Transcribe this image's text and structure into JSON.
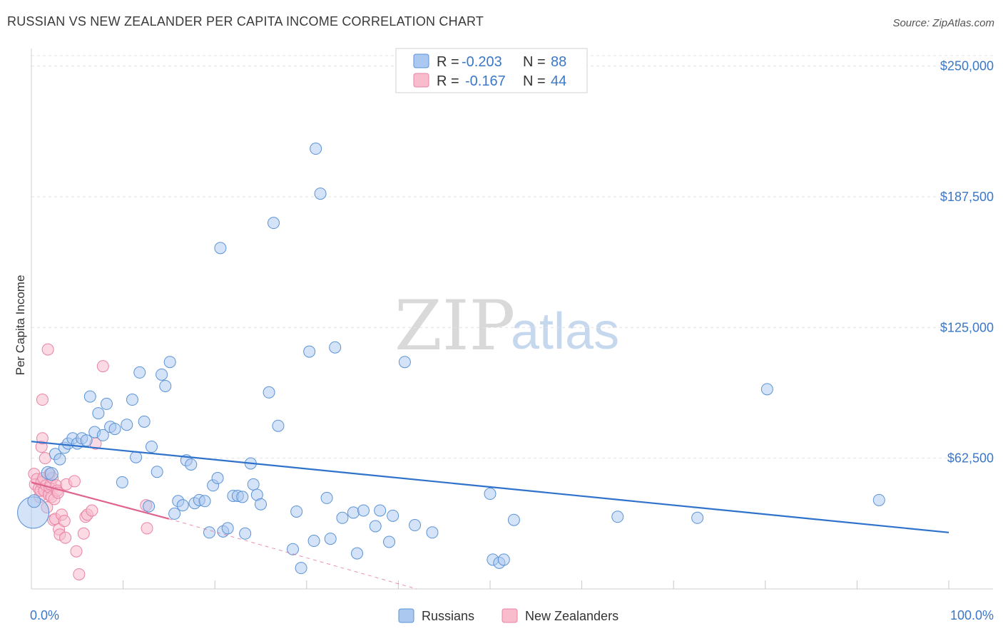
{
  "header": {
    "title": "RUSSIAN VS NEW ZEALANDER PER CAPITA INCOME CORRELATION CHART",
    "source": "Source: ZipAtlas.com"
  },
  "legend": {
    "r_label": "R =",
    "n_label": "N =",
    "series": [
      {
        "r": "-0.203",
        "n": "88"
      },
      {
        "r": "-0.167",
        "n": "44"
      }
    ]
  },
  "watermark": {
    "zip": "ZIP",
    "atlas": "atlas"
  },
  "colors": {
    "russians_fill": "#aac8f0",
    "russians_stroke": "#5b93d6",
    "russians_line": "#2f72cc",
    "nz_fill": "#f8bccd",
    "nz_stroke": "#e983a4",
    "nz_line": "#e0628f",
    "tick_text": "#3b78c7"
  },
  "chart_data": {
    "type": "scatter",
    "title": "RUSSIAN VS NEW ZEALANDER PER CAPITA INCOME CORRELATION CHART",
    "xlabel": "",
    "ylabel": "Per Capita Income",
    "xlim": [
      0,
      100
    ],
    "ylim": [
      0,
      255000
    ],
    "x_tick_labels": [
      "0.0%",
      "100.0%"
    ],
    "y_ticks": [
      62500,
      125000,
      187500,
      250000
    ],
    "y_tick_labels": [
      "$62,500",
      "$125,000",
      "$187,500",
      "$250,000"
    ],
    "grid": true,
    "legend_position": "bottom-center",
    "series": [
      {
        "name": "Russians",
        "r": -0.203,
        "n": 88,
        "trend": {
          "x": [
            0,
            100
          ],
          "y": [
            70500,
            27000
          ]
        },
        "points": [
          [
            0.2,
            36500,
            22
          ],
          [
            0.3,
            42000,
            9
          ],
          [
            1.8,
            55500,
            9
          ],
          [
            2.2,
            55000,
            9
          ],
          [
            2.6,
            64500,
            8
          ],
          [
            3.1,
            62000,
            8
          ],
          [
            3.6,
            67500,
            8
          ],
          [
            4.0,
            69500,
            8
          ],
          [
            4.5,
            72000,
            8
          ],
          [
            5.0,
            69500,
            8
          ],
          [
            5.5,
            72000,
            8
          ],
          [
            6.0,
            71000,
            8
          ],
          [
            6.4,
            92000,
            8
          ],
          [
            6.9,
            75000,
            8
          ],
          [
            7.3,
            84000,
            8
          ],
          [
            7.8,
            73500,
            8
          ],
          [
            8.2,
            88500,
            8
          ],
          [
            8.6,
            77500,
            8
          ],
          [
            9.1,
            76500,
            8
          ],
          [
            9.9,
            51000,
            8
          ],
          [
            10.4,
            78500,
            8
          ],
          [
            11.0,
            90500,
            8
          ],
          [
            11.4,
            63000,
            8
          ],
          [
            11.8,
            103500,
            8
          ],
          [
            12.3,
            80000,
            8
          ],
          [
            12.8,
            39500,
            8
          ],
          [
            13.1,
            68000,
            8
          ],
          [
            13.7,
            56000,
            8
          ],
          [
            14.2,
            102500,
            8
          ],
          [
            14.6,
            97000,
            8
          ],
          [
            15.1,
            108500,
            8
          ],
          [
            15.6,
            36000,
            8
          ],
          [
            16.0,
            42000,
            8
          ],
          [
            16.5,
            40000,
            8
          ],
          [
            16.9,
            61500,
            8
          ],
          [
            17.4,
            59500,
            8
          ],
          [
            17.8,
            41000,
            8
          ],
          [
            18.3,
            42500,
            8
          ],
          [
            18.9,
            42000,
            8
          ],
          [
            19.4,
            27000,
            8
          ],
          [
            19.8,
            49500,
            8
          ],
          [
            20.3,
            53000,
            8
          ],
          [
            20.6,
            163000,
            8
          ],
          [
            20.9,
            27500,
            8
          ],
          [
            21.4,
            29000,
            8
          ],
          [
            22.0,
            44500,
            8
          ],
          [
            22.5,
            44500,
            8
          ],
          [
            23.0,
            44000,
            8
          ],
          [
            23.3,
            26500,
            8
          ],
          [
            23.9,
            60000,
            8
          ],
          [
            24.2,
            50000,
            8
          ],
          [
            24.6,
            45000,
            8
          ],
          [
            25.0,
            40500,
            8
          ],
          [
            25.9,
            94000,
            8
          ],
          [
            26.4,
            175000,
            8
          ],
          [
            26.9,
            78000,
            8
          ],
          [
            28.5,
            19000,
            8
          ],
          [
            28.9,
            37000,
            8
          ],
          [
            29.4,
            10000,
            8
          ],
          [
            30.3,
            113500,
            8
          ],
          [
            30.8,
            23000,
            8
          ],
          [
            31.0,
            210500,
            8
          ],
          [
            31.5,
            189000,
            8
          ],
          [
            32.2,
            43500,
            8
          ],
          [
            32.6,
            24000,
            8
          ],
          [
            33.1,
            115500,
            8
          ],
          [
            33.9,
            34000,
            8
          ],
          [
            35.1,
            36500,
            8
          ],
          [
            35.5,
            17000,
            8
          ],
          [
            36.2,
            37500,
            8
          ],
          [
            37.5,
            30000,
            8
          ],
          [
            38.0,
            37500,
            8
          ],
          [
            39.0,
            22500,
            8
          ],
          [
            39.4,
            35000,
            8
          ],
          [
            40.7,
            108500,
            8
          ],
          [
            41.8,
            30500,
            8
          ],
          [
            43.7,
            27000,
            8
          ],
          [
            50.0,
            45500,
            8
          ],
          [
            50.3,
            14000,
            8
          ],
          [
            51.0,
            12500,
            8
          ],
          [
            51.5,
            14000,
            8
          ],
          [
            52.6,
            33000,
            8
          ],
          [
            63.9,
            34500,
            8
          ],
          [
            72.6,
            34000,
            8
          ],
          [
            80.2,
            95500,
            8
          ],
          [
            92.4,
            42500,
            8
          ]
        ]
      },
      {
        "name": "New Zealanders",
        "r": -0.167,
        "n": 44,
        "trend": {
          "x": [
            0,
            15
          ],
          "y": [
            51000,
            33500
          ]
        },
        "trend_dashed": {
          "x": [
            15,
            42
          ],
          "y": [
            33500,
            0
          ]
        },
        "points": [
          [
            0.3,
            55000,
            8
          ],
          [
            0.4,
            50000,
            8
          ],
          [
            0.6,
            52500,
            8
          ],
          [
            0.8,
            48000,
            8
          ],
          [
            0.9,
            44000,
            8
          ],
          [
            1.0,
            47000,
            8
          ],
          [
            1.1,
            68000,
            8
          ],
          [
            1.1,
            51000,
            8
          ],
          [
            1.2,
            90500,
            8
          ],
          [
            1.2,
            72000,
            8
          ],
          [
            1.3,
            53000,
            8
          ],
          [
            1.4,
            47000,
            8
          ],
          [
            1.5,
            62500,
            8
          ],
          [
            1.6,
            49500,
            8
          ],
          [
            1.7,
            39000,
            8
          ],
          [
            1.8,
            114500,
            8
          ],
          [
            1.9,
            45000,
            8
          ],
          [
            2.0,
            48500,
            8
          ],
          [
            2.0,
            55000,
            8
          ],
          [
            2.1,
            50000,
            8
          ],
          [
            2.2,
            44000,
            8
          ],
          [
            2.3,
            53000,
            8
          ],
          [
            2.4,
            33000,
            8
          ],
          [
            2.5,
            43000,
            8
          ],
          [
            2.6,
            33500,
            8
          ],
          [
            2.7,
            49500,
            8
          ],
          [
            2.8,
            47000,
            8
          ],
          [
            2.9,
            46000,
            8
          ],
          [
            3.0,
            28500,
            8
          ],
          [
            3.1,
            26000,
            8
          ],
          [
            3.3,
            35500,
            8
          ],
          [
            3.6,
            32500,
            8
          ],
          [
            3.7,
            24500,
            8
          ],
          [
            3.8,
            50000,
            8
          ],
          [
            4.7,
            51500,
            8
          ],
          [
            4.9,
            18000,
            8
          ],
          [
            5.2,
            7000,
            8
          ],
          [
            5.7,
            26500,
            8
          ],
          [
            5.9,
            34500,
            8
          ],
          [
            6.1,
            35500,
            8
          ],
          [
            6.6,
            37500,
            8
          ],
          [
            7.0,
            69500,
            8
          ],
          [
            7.8,
            106500,
            8
          ],
          [
            12.5,
            40000,
            8
          ],
          [
            12.6,
            29000,
            8
          ]
        ]
      }
    ]
  },
  "bottom_legend": [
    "Russians",
    "New Zealanders"
  ]
}
